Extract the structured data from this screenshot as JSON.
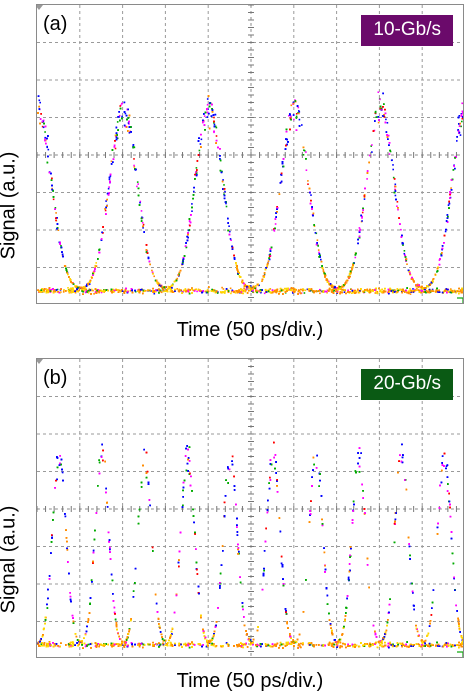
{
  "chart_data": [
    {
      "type": "scatter",
      "panel_label": "(a)",
      "badge": "10-Gb/s",
      "badge_color": "#6b0a6b",
      "xlabel": "Time (50 ps/div.)",
      "ylabel": "Signal (a.u.)",
      "x_divisions": 10,
      "y_divisions": 8,
      "x_unit_per_div_ps": 50,
      "pulse_period_ps": 100,
      "pulse_peaks_ps": [
        0,
        100,
        200,
        300,
        400,
        500
      ],
      "baseline_level_div": 0.4,
      "peak_level_div": 5.8,
      "trace_colors": [
        "#ff8c00",
        "#ffd700",
        "#ff00ff",
        "#0000ff",
        "#00aa00",
        "#ff0000"
      ],
      "grid": true
    },
    {
      "type": "scatter",
      "panel_label": "(b)",
      "badge": "20-Gb/s",
      "badge_color": "#0a5a14",
      "xlabel": "Time (50 ps/div.)",
      "ylabel": "Signal (a.u.)",
      "x_divisions": 10,
      "y_divisions": 8,
      "x_unit_per_div_ps": 50,
      "pulse_period_ps": 50,
      "pulse_peaks_ps": [
        25,
        75,
        125,
        175,
        225,
        275,
        325,
        375,
        425,
        475
      ],
      "baseline_level_div": 0.4,
      "peak_level_div": 6.0,
      "trace_colors": [
        "#ff8c00",
        "#ffd700",
        "#ff00ff",
        "#0000ff",
        "#00aa00",
        "#ff0000"
      ],
      "grid": true
    }
  ]
}
